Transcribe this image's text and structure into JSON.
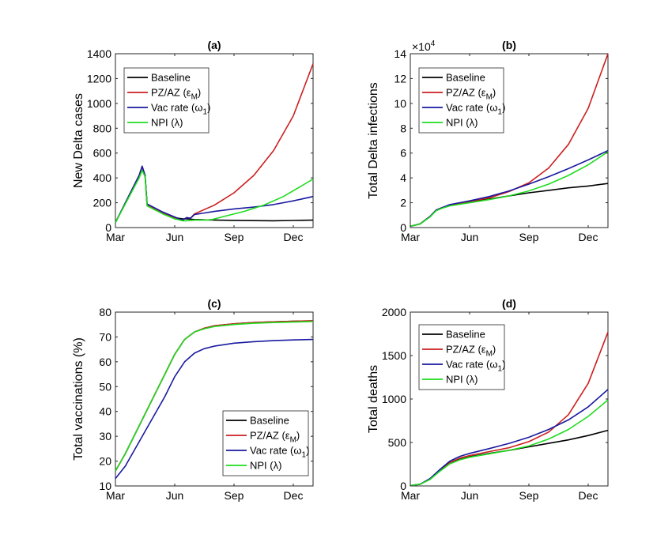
{
  "colors": {
    "Baseline": "#000000",
    "PZ/AZ": "#cc1f1f",
    "Vac rate": "#1a1aa0",
    "NPI": "#1fdc1f"
  },
  "legend": [
    {
      "key": "Baseline",
      "label": "Baseline",
      "color": "#000000"
    },
    {
      "key": "PZ/AZ",
      "label": "PZ/AZ (ε",
      "sub": "M",
      "tail": ")",
      "color": "#cc1f1f"
    },
    {
      "key": "Vac rate",
      "label": "Vac rate (ω",
      "sub": "1",
      "tail": ")",
      "color": "#1a1aa0"
    },
    {
      "key": "NPI",
      "label": "NPI (λ)",
      "color": "#1fdc1f"
    }
  ],
  "chart_data": [
    {
      "id": "a",
      "type": "line",
      "title": "(a)",
      "ylabel": "New Delta cases",
      "xlim": [
        0,
        10
      ],
      "ylim": [
        0,
        1400
      ],
      "xticks": [
        0,
        3,
        6,
        9
      ],
      "xticklabels": [
        "Mar",
        "Jun",
        "Sep",
        "Dec"
      ],
      "yticks": [
        0,
        200,
        400,
        600,
        800,
        1000,
        1200,
        1400
      ],
      "yticklabels": [
        "0",
        "200",
        "400",
        "600",
        "800",
        "1000",
        "1200",
        "1400"
      ],
      "legend_position": "top-left",
      "series": [
        {
          "name": "Baseline",
          "x": [
            0,
            1.2,
            1.35,
            1.5,
            1.6,
            2.4,
            3.0,
            3.4,
            3.6,
            4.0,
            4.6,
            6,
            7,
            8,
            9,
            10
          ],
          "y": [
            40,
            420,
            490,
            420,
            185,
            120,
            80,
            70,
            70,
            65,
            62,
            58,
            56,
            55,
            57,
            60
          ]
        },
        {
          "name": "PZ/AZ",
          "x": [
            0,
            1.2,
            1.35,
            1.5,
            1.6,
            2.4,
            3.0,
            3.4,
            3.6,
            3.8,
            4.0,
            5,
            6,
            7,
            8,
            9,
            10
          ],
          "y": [
            40,
            420,
            490,
            420,
            185,
            120,
            80,
            60,
            80,
            75,
            110,
            180,
            280,
            420,
            620,
            900,
            1320
          ]
        },
        {
          "name": "Vac rate",
          "x": [
            0,
            1.2,
            1.35,
            1.5,
            1.6,
            2.4,
            3.0,
            3.4,
            3.6,
            3.8,
            4.0,
            5,
            6,
            7,
            8,
            9,
            10
          ],
          "y": [
            40,
            420,
            495,
            420,
            190,
            125,
            85,
            60,
            80,
            75,
            105,
            130,
            150,
            165,
            185,
            215,
            250
          ]
        },
        {
          "name": "NPI",
          "x": [
            0,
            1.2,
            1.35,
            1.5,
            1.6,
            2.4,
            3.0,
            3.4,
            3.6,
            4.0,
            4.5,
            4.9,
            5.5,
            6.5,
            7.5,
            8.5,
            10
          ],
          "y": [
            40,
            400,
            460,
            410,
            175,
            110,
            70,
            55,
            55,
            60,
            60,
            65,
            90,
            130,
            180,
            250,
            390
          ]
        }
      ]
    },
    {
      "id": "b",
      "type": "line",
      "title": "(b)",
      "ylabel": "Total Delta infections",
      "exponent_label": "×10",
      "exponent_sup": "4",
      "xlim": [
        0,
        10
      ],
      "ylim": [
        0,
        14
      ],
      "xticks": [
        0,
        3,
        6,
        9
      ],
      "xticklabels": [
        "Mar",
        "Jun",
        "Sep",
        "Dec"
      ],
      "yticks": [
        0,
        2,
        4,
        6,
        8,
        10,
        12,
        14
      ],
      "yticklabels": [
        "0",
        "2",
        "4",
        "6",
        "8",
        "10",
        "12",
        "14"
      ],
      "legend_position": "top-left",
      "series": [
        {
          "name": "Baseline",
          "x": [
            0,
            0.5,
            1,
            1.3,
            1.6,
            2,
            3,
            4,
            5,
            6,
            7,
            8,
            9,
            10
          ],
          "y": [
            0.1,
            0.3,
            0.9,
            1.4,
            1.6,
            1.8,
            2.05,
            2.3,
            2.55,
            2.8,
            3.0,
            3.2,
            3.35,
            3.55
          ]
        },
        {
          "name": "PZ/AZ",
          "x": [
            0,
            0.5,
            1,
            1.3,
            1.6,
            2,
            3,
            4,
            5,
            6,
            7,
            8,
            9,
            10
          ],
          "y": [
            0.1,
            0.3,
            0.9,
            1.4,
            1.6,
            1.8,
            2.1,
            2.4,
            2.9,
            3.6,
            4.8,
            6.7,
            9.6,
            14.0
          ]
        },
        {
          "name": "Vac rate",
          "x": [
            0,
            0.5,
            1,
            1.3,
            1.6,
            2,
            3,
            4,
            5,
            6,
            7,
            8,
            9,
            10
          ],
          "y": [
            0.1,
            0.3,
            0.9,
            1.4,
            1.6,
            1.85,
            2.15,
            2.5,
            2.95,
            3.5,
            4.1,
            4.75,
            5.45,
            6.2
          ]
        },
        {
          "name": "NPI",
          "x": [
            0,
            0.5,
            1,
            1.3,
            1.6,
            2,
            3,
            4,
            5,
            6,
            7,
            8,
            9,
            10
          ],
          "y": [
            0.1,
            0.3,
            0.85,
            1.35,
            1.55,
            1.75,
            2.0,
            2.25,
            2.55,
            2.95,
            3.5,
            4.2,
            5.05,
            6.1
          ]
        }
      ]
    },
    {
      "id": "c",
      "type": "line",
      "title": "(c)",
      "ylabel": "Total vaccinations (%)",
      "xlim": [
        0,
        10
      ],
      "ylim": [
        10,
        80
      ],
      "xticks": [
        0,
        3,
        6,
        9
      ],
      "xticklabels": [
        "Mar",
        "Jun",
        "Sep",
        "Dec"
      ],
      "yticks": [
        10,
        20,
        30,
        40,
        50,
        60,
        70,
        80
      ],
      "yticklabels": [
        "10",
        "20",
        "30",
        "40",
        "50",
        "60",
        "70",
        "80"
      ],
      "legend_position": "bottom-right",
      "series": [
        {
          "name": "Baseline",
          "x": [
            0,
            0.5,
            1,
            1.5,
            2,
            2.5,
            3,
            3.5,
            4,
            4.5,
            5,
            6,
            7,
            8,
            9,
            10
          ],
          "y": [
            16,
            23,
            31,
            39,
            47,
            55,
            63,
            69,
            72,
            73.5,
            74.5,
            75.3,
            75.8,
            76.1,
            76.3,
            76.5
          ]
        },
        {
          "name": "PZ/AZ",
          "x": [
            0,
            0.5,
            1,
            1.5,
            2,
            2.5,
            3,
            3.5,
            4,
            4.5,
            5,
            6,
            7,
            8,
            9,
            10
          ],
          "y": [
            16,
            23,
            31,
            39,
            47,
            55,
            63,
            69,
            72,
            73.5,
            74.5,
            75.3,
            75.8,
            76.1,
            76.3,
            76.5
          ]
        },
        {
          "name": "Vac rate",
          "x": [
            0,
            0.5,
            1,
            1.5,
            2,
            2.5,
            3,
            3.5,
            4,
            4.5,
            5,
            6,
            7,
            8,
            9,
            10
          ],
          "y": [
            13,
            18,
            25,
            32,
            39,
            46,
            54,
            60,
            63.5,
            65.3,
            66.3,
            67.5,
            68.1,
            68.5,
            68.8,
            69
          ]
        },
        {
          "name": "NPI",
          "x": [
            0,
            0.5,
            1,
            1.5,
            2,
            2.5,
            3,
            3.5,
            4,
            4.5,
            5,
            6,
            7,
            8,
            9,
            10
          ],
          "y": [
            16,
            23,
            31,
            39,
            47,
            55,
            63,
            69,
            72,
            73.3,
            74.2,
            75.0,
            75.5,
            75.8,
            76.0,
            76.2
          ]
        }
      ]
    },
    {
      "id": "d",
      "type": "line",
      "title": "(d)",
      "ylabel": "Total deaths",
      "xlim": [
        0,
        10
      ],
      "ylim": [
        0,
        2000
      ],
      "xticks": [
        0,
        3,
        6,
        9
      ],
      "xticklabels": [
        "Mar",
        "Jun",
        "Sep",
        "Dec"
      ],
      "yticks": [
        0,
        500,
        1000,
        1500,
        2000
      ],
      "yticklabels": [
        "0",
        "500",
        "1000",
        "1500",
        "2000"
      ],
      "legend_position": "top-left",
      "series": [
        {
          "name": "Baseline",
          "x": [
            0,
            0.5,
            1,
            1.5,
            2,
            2.5,
            3,
            4,
            5,
            6,
            7,
            8,
            9,
            10
          ],
          "y": [
            5,
            20,
            80,
            180,
            260,
            305,
            335,
            375,
            410,
            450,
            490,
            530,
            580,
            640
          ]
        },
        {
          "name": "PZ/AZ",
          "x": [
            0,
            0.5,
            1,
            1.5,
            2,
            2.5,
            3,
            4,
            5,
            6,
            7,
            8,
            9,
            10
          ],
          "y": [
            5,
            20,
            80,
            180,
            270,
            320,
            350,
            395,
            440,
            510,
            620,
            820,
            1180,
            1770
          ]
        },
        {
          "name": "Vac rate",
          "x": [
            0,
            0.5,
            1,
            1.5,
            2,
            2.5,
            3,
            4,
            5,
            6,
            7,
            8,
            9,
            10
          ],
          "y": [
            5,
            20,
            85,
            190,
            285,
            340,
            375,
            430,
            490,
            560,
            650,
            760,
            910,
            1110
          ]
        },
        {
          "name": "NPI",
          "x": [
            0,
            0.5,
            1,
            1.5,
            2,
            2.5,
            3,
            4,
            5,
            6,
            7,
            8,
            9,
            10
          ],
          "y": [
            5,
            20,
            75,
            170,
            255,
            300,
            330,
            370,
            410,
            460,
            540,
            650,
            800,
            990
          ]
        }
      ]
    }
  ]
}
